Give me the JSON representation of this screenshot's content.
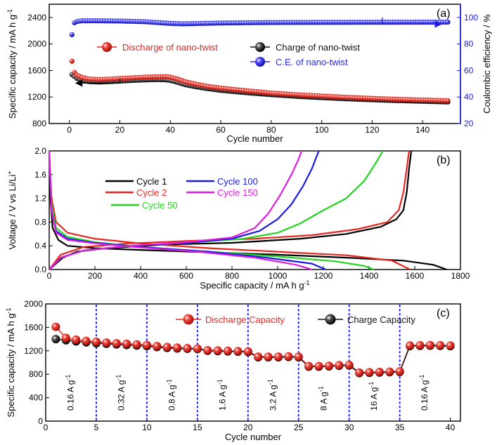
{
  "chart_data": [
    {
      "id": "a",
      "type": "scatter",
      "panel_label": "(a)",
      "xlabel": "Cycle number",
      "ylabel": "Specific capacity / mA h g",
      "ylabel_sup": "-1",
      "y2label": "Coulombic efficiency / %",
      "xlim": [
        -8,
        155
      ],
      "ylim": [
        800,
        2600
      ],
      "y2lim": [
        20,
        110
      ],
      "xticks": [
        0,
        20,
        40,
        60,
        80,
        100,
        120,
        140
      ],
      "yticks": [
        800,
        1200,
        1600,
        2000,
        2400
      ],
      "y2ticks": [
        20,
        40,
        60,
        80,
        100
      ],
      "series": [
        {
          "name": "Discharge of nano-twist",
          "color": "#e8251f",
          "axis": "left",
          "points": [
            [
              1,
              1740
            ],
            [
              2,
              1570
            ],
            [
              3,
              1530
            ],
            [
              5,
              1495
            ],
            [
              8,
              1470
            ],
            [
              12,
              1465
            ],
            [
              16,
              1470
            ],
            [
              20,
              1480
            ],
            [
              25,
              1490
            ],
            [
              30,
              1500
            ],
            [
              35,
              1505
            ],
            [
              38,
              1508
            ],
            [
              40,
              1500
            ],
            [
              43,
              1470
            ],
            [
              46,
              1430
            ],
            [
              50,
              1395
            ],
            [
              55,
              1360
            ],
            [
              60,
              1335
            ],
            [
              70,
              1295
            ],
            [
              80,
              1260
            ],
            [
              90,
              1235
            ],
            [
              100,
              1215
            ],
            [
              110,
              1195
            ],
            [
              120,
              1180
            ],
            [
              130,
              1165
            ],
            [
              140,
              1155
            ],
            [
              150,
              1145
            ]
          ]
        },
        {
          "name": "Charge of nano-twist",
          "color": "#111111",
          "axis": "left",
          "points": [
            [
              1,
              1540
            ],
            [
              2,
              1510
            ],
            [
              3,
              1480
            ],
            [
              5,
              1450
            ],
            [
              8,
              1430
            ],
            [
              12,
              1425
            ],
            [
              16,
              1432
            ],
            [
              20,
              1440
            ],
            [
              25,
              1450
            ],
            [
              30,
              1458
            ],
            [
              35,
              1462
            ],
            [
              38,
              1460
            ],
            [
              40,
              1450
            ],
            [
              43,
              1420
            ],
            [
              46,
              1385
            ],
            [
              50,
              1355
            ],
            [
              55,
              1325
            ],
            [
              60,
              1300
            ],
            [
              70,
              1265
            ],
            [
              80,
              1235
            ],
            [
              90,
              1210
            ],
            [
              100,
              1190
            ],
            [
              110,
              1172
            ],
            [
              120,
              1158
            ],
            [
              130,
              1145
            ],
            [
              140,
              1135
            ],
            [
              150,
              1125
            ]
          ]
        },
        {
          "name": "C.E. of nano-twist",
          "color": "#2a2ae0",
          "axis": "right",
          "points": [
            [
              1,
              87
            ],
            [
              2,
              96
            ],
            [
              3,
              97
            ],
            [
              5,
              97.5
            ],
            [
              10,
              97.5
            ],
            [
              20,
              97.3
            ],
            [
              30,
              96.8
            ],
            [
              40,
              95.5
            ],
            [
              45,
              95.2
            ],
            [
              60,
              95.8
            ],
            [
              80,
              96.2
            ],
            [
              100,
              96.3
            ],
            [
              120,
              96.4
            ],
            [
              140,
              96.5
            ],
            [
              150,
              96.5
            ]
          ]
        }
      ],
      "arrows": [
        {
          "from": [
            20,
            1410
          ],
          "to": [
            3,
            1410
          ],
          "axis": "left"
        },
        {
          "from": [
            124,
            100
          ],
          "to": [
            147,
            95
          ],
          "axis": "right"
        }
      ]
    },
    {
      "id": "b",
      "type": "line",
      "panel_label": "(b)",
      "xlabel": "Specific capacity / mA h g",
      "xlabel_sup": "-1",
      "ylabel": "Voltage / V vs Li/Li",
      "ylabel_sup": "+",
      "xlim": [
        0,
        1800
      ],
      "ylim": [
        0,
        2.0
      ],
      "xticks": [
        0,
        200,
        400,
        600,
        800,
        1000,
        1200,
        1400,
        1600,
        1800
      ],
      "yticks": [
        0.0,
        0.4,
        0.8,
        1.2,
        1.6,
        2.0
      ],
      "ytick_labels": [
        "0.0",
        "0.4",
        "0.8",
        "1.2",
        "1.6",
        "2.0"
      ],
      "series": [
        {
          "name": "Cycle 1",
          "color": "#000000",
          "discharge": [
            [
              0,
              2.0
            ],
            [
              5,
              1.2
            ],
            [
              15,
              0.7
            ],
            [
              40,
              0.5
            ],
            [
              80,
              0.4
            ],
            [
              200,
              0.36
            ],
            [
              400,
              0.33
            ],
            [
              700,
              0.29
            ],
            [
              1000,
              0.25
            ],
            [
              1300,
              0.2
            ],
            [
              1550,
              0.15
            ],
            [
              1680,
              0.08
            ],
            [
              1740,
              0.0
            ]
          ],
          "charge": [
            [
              0,
              0.0
            ],
            [
              60,
              0.2
            ],
            [
              120,
              0.3
            ],
            [
              250,
              0.36
            ],
            [
              500,
              0.42
            ],
            [
              800,
              0.45
            ],
            [
              1100,
              0.52
            ],
            [
              1300,
              0.6
            ],
            [
              1450,
              0.72
            ],
            [
              1520,
              0.85
            ],
            [
              1550,
              1.0
            ],
            [
              1565,
              1.3
            ],
            [
              1575,
              1.7
            ],
            [
              1585,
              2.0
            ]
          ]
        },
        {
          "name": "Cycle 2",
          "color": "#e8251f",
          "discharge": [
            [
              0,
              2.0
            ],
            [
              10,
              1.2
            ],
            [
              30,
              0.8
            ],
            [
              80,
              0.62
            ],
            [
              200,
              0.52
            ],
            [
              400,
              0.44
            ],
            [
              700,
              0.36
            ],
            [
              1000,
              0.3
            ],
            [
              1300,
              0.24
            ],
            [
              1500,
              0.15
            ],
            [
              1580,
              0.0
            ]
          ],
          "charge": [
            [
              0,
              0.0
            ],
            [
              50,
              0.25
            ],
            [
              150,
              0.38
            ],
            [
              350,
              0.44
            ],
            [
              600,
              0.48
            ],
            [
              900,
              0.52
            ],
            [
              1150,
              0.58
            ],
            [
              1350,
              0.68
            ],
            [
              1480,
              0.8
            ],
            [
              1530,
              1.0
            ],
            [
              1550,
              1.3
            ],
            [
              1565,
              1.7
            ],
            [
              1575,
              2.0
            ]
          ]
        },
        {
          "name": "Cycle 50",
          "color": "#22d61f",
          "discharge": [
            [
              0,
              2.0
            ],
            [
              10,
              1.1
            ],
            [
              30,
              0.7
            ],
            [
              80,
              0.55
            ],
            [
              200,
              0.46
            ],
            [
              400,
              0.38
            ],
            [
              700,
              0.3
            ],
            [
              1000,
              0.22
            ],
            [
              1250,
              0.14
            ],
            [
              1380,
              0.06
            ],
            [
              1420,
              0.0
            ]
          ],
          "charge": [
            [
              0,
              0.0
            ],
            [
              50,
              0.2
            ],
            [
              150,
              0.32
            ],
            [
              350,
              0.4
            ],
            [
              600,
              0.45
            ],
            [
              850,
              0.52
            ],
            [
              1000,
              0.62
            ],
            [
              1100,
              0.78
            ],
            [
              1200,
              1.0
            ],
            [
              1300,
              1.2
            ],
            [
              1380,
              1.5
            ],
            [
              1430,
              1.8
            ],
            [
              1460,
              2.0
            ]
          ]
        },
        {
          "name": "Cycle 100",
          "color": "#1a1ae6",
          "discharge": [
            [
              0,
              2.0
            ],
            [
              10,
              1.0
            ],
            [
              30,
              0.65
            ],
            [
              80,
              0.52
            ],
            [
              200,
              0.45
            ],
            [
              400,
              0.38
            ],
            [
              700,
              0.3
            ],
            [
              950,
              0.2
            ],
            [
              1150,
              0.1
            ],
            [
              1210,
              0.0
            ]
          ],
          "charge": [
            [
              0,
              0.0
            ],
            [
              50,
              0.2
            ],
            [
              150,
              0.32
            ],
            [
              350,
              0.4
            ],
            [
              600,
              0.45
            ],
            [
              800,
              0.52
            ],
            [
              920,
              0.65
            ],
            [
              1000,
              0.85
            ],
            [
              1060,
              1.1
            ],
            [
              1110,
              1.4
            ],
            [
              1150,
              1.7
            ],
            [
              1180,
              2.0
            ]
          ]
        },
        {
          "name": "Cycle 150",
          "color": "#e01ee0",
          "discharge": [
            [
              0,
              2.0
            ],
            [
              10,
              1.0
            ],
            [
              30,
              0.62
            ],
            [
              80,
              0.5
            ],
            [
              200,
              0.44
            ],
            [
              400,
              0.37
            ],
            [
              650,
              0.3
            ],
            [
              900,
              0.2
            ],
            [
              1080,
              0.08
            ],
            [
              1150,
              0.0
            ]
          ],
          "charge": [
            [
              0,
              0.0
            ],
            [
              50,
              0.2
            ],
            [
              150,
              0.32
            ],
            [
              350,
              0.4
            ],
            [
              600,
              0.46
            ],
            [
              800,
              0.54
            ],
            [
              900,
              0.7
            ],
            [
              960,
              0.95
            ],
            [
              1010,
              1.25
            ],
            [
              1060,
              1.6
            ],
            [
              1090,
              1.85
            ],
            [
              1105,
              2.0
            ]
          ]
        }
      ]
    },
    {
      "id": "c",
      "type": "scatter",
      "panel_label": "(c)",
      "xlabel": "Cycle number",
      "ylabel": "Specific capacity / mA h g",
      "ylabel_sup": "-1",
      "xlim": [
        0,
        41
      ],
      "ylim": [
        0,
        2000
      ],
      "xticks": [
        0,
        5,
        10,
        15,
        20,
        25,
        30,
        35,
        40
      ],
      "yticks": [
        0,
        400,
        800,
        1200,
        1600,
        2000
      ],
      "dividers": [
        5,
        10,
        15,
        20,
        25,
        30,
        35
      ],
      "rate_labels": [
        {
          "x": 2.4,
          "text": "0.16 A g",
          "sup": "-1"
        },
        {
          "x": 7.4,
          "text": "0.32 A g",
          "sup": "-1"
        },
        {
          "x": 12.4,
          "text": "0.8 A g",
          "sup": "-1"
        },
        {
          "x": 17.4,
          "text": "1.6 A g",
          "sup": "-1"
        },
        {
          "x": 22.4,
          "text": "3.2 A g",
          "sup": "-1"
        },
        {
          "x": 27.4,
          "text": "8 A g",
          "sup": "-1"
        },
        {
          "x": 32.4,
          "text": "16 A g",
          "sup": "-1"
        },
        {
          "x": 37.4,
          "text": "0.16 A g",
          "sup": "-1"
        }
      ],
      "series": [
        {
          "name": "Discharge Capacity",
          "color": "#e8251f",
          "values": [
            1610,
            1420,
            1390,
            1370,
            1355,
            1340,
            1330,
            1320,
            1310,
            1300,
            1280,
            1265,
            1255,
            1245,
            1240,
            1210,
            1205,
            1200,
            1195,
            1190,
            1100,
            1100,
            1100,
            1105,
            1100,
            940,
            940,
            945,
            955,
            960,
            830,
            835,
            840,
            845,
            850,
            1290,
            1295,
            1298,
            1295,
            1290
          ]
        },
        {
          "name": "Charge Capacity",
          "color": "#111111",
          "values": [
            1400,
            1380,
            1360,
            1345,
            1330,
            1320,
            1310,
            1300,
            1290,
            1280,
            1265,
            1250,
            1240,
            1235,
            1230,
            1200,
            1195,
            1190,
            1185,
            1180,
            1090,
            1090,
            1090,
            1095,
            1090,
            930,
            930,
            935,
            945,
            950,
            820,
            825,
            830,
            835,
            840,
            1280,
            1285,
            1288,
            1285,
            1280
          ]
        }
      ]
    }
  ]
}
